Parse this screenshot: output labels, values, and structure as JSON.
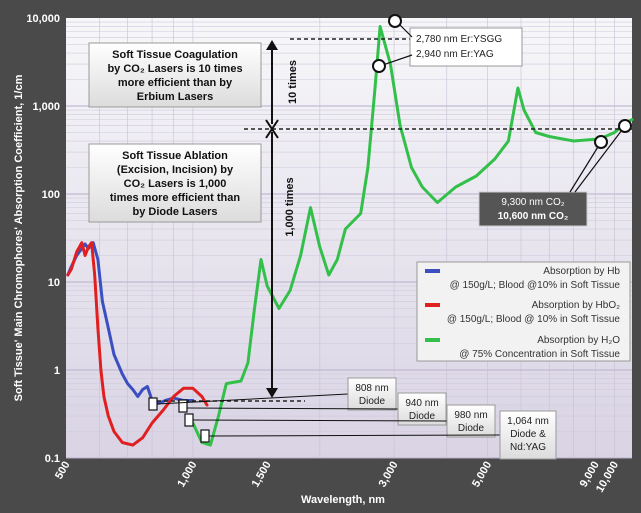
{
  "chart_data": {
    "type": "line",
    "xlabel": "Wavelength, nm",
    "ylabel": "Soft Tissue' Main Chromophores' Absorption Coefficient, 1/cm",
    "xscale": "log",
    "yscale": "log",
    "xlim": [
      500,
      11000
    ],
    "ylim": [
      0.1,
      10000
    ],
    "grid": true,
    "legend_position": "right",
    "x_ticks": [
      {
        "value": 500,
        "label": "500"
      },
      {
        "value": 1000,
        "label": "1,000"
      },
      {
        "value": 1500,
        "label": "1,500"
      },
      {
        "value": 3000,
        "label": "3,000"
      },
      {
        "value": 5000,
        "label": "5,000"
      },
      {
        "value": 9000,
        "label": "9,000"
      },
      {
        "value": 10000,
        "label": "10,000"
      }
    ],
    "y_ticks": [
      {
        "value": 0.1,
        "label": "0.1"
      },
      {
        "value": 1,
        "label": "1"
      },
      {
        "value": 10,
        "label": "10"
      },
      {
        "value": 100,
        "label": "100"
      },
      {
        "value": 1000,
        "label": "1,000"
      },
      {
        "value": 10000,
        "label": "10,000"
      }
    ],
    "series": [
      {
        "name": "Absorption by Hb @ 150g/L; Blood @10% in Soft Tissue",
        "legend_line1": "Absorption by Hb",
        "legend_line2": "@ 150g/L; Blood @10% in Soft Tissue",
        "color": "#3b4fc0",
        "x": [
          505,
          515,
          530,
          545,
          555,
          565,
          580,
          595,
          610,
          630,
          650,
          680,
          700,
          720,
          740,
          760,
          780,
          800,
          830,
          860,
          900,
          950,
          1000
        ],
        "y": [
          12,
          15,
          20,
          24,
          27,
          24,
          28,
          18,
          6,
          3,
          1.5,
          0.9,
          0.7,
          0.6,
          0.5,
          0.6,
          0.65,
          0.45,
          0.42,
          0.45,
          0.48,
          0.45,
          0.45
        ]
      },
      {
        "name": "Absorption by HbO2 @ 150g/L; Blood @ 10% in Soft Tissue",
        "legend_line1": "Absorption by HbO₂",
        "legend_line2": "@ 150g/L; Blood @ 10% in Soft Tissue",
        "color": "#e02020",
        "x": [
          505,
          515,
          530,
          545,
          555,
          565,
          575,
          585,
          595,
          605,
          615,
          630,
          650,
          680,
          720,
          760,
          800,
          850,
          900,
          950,
          1000,
          1050,
          1080
        ],
        "y": [
          12,
          14,
          22,
          28,
          20,
          25,
          28,
          12,
          3,
          1,
          0.5,
          0.3,
          0.2,
          0.15,
          0.14,
          0.17,
          0.25,
          0.35,
          0.5,
          0.62,
          0.62,
          0.5,
          0.4
        ]
      },
      {
        "name": "Absorption by H2O @ 75% Concentration in Soft Tissue",
        "legend_line1": "Absorption by H₂O",
        "legend_line2": "@ 75% Concentration in Soft Tissue",
        "color": "#33c04a",
        "x": [
          1000,
          1050,
          1100,
          1150,
          1200,
          1300,
          1350,
          1400,
          1450,
          1500,
          1600,
          1700,
          1800,
          1900,
          2000,
          2100,
          2200,
          2300,
          2500,
          2600,
          2700,
          2780,
          2940,
          3100,
          3300,
          3500,
          3800,
          4200,
          4700,
          5200,
          5600,
          5900,
          6100,
          6500,
          7000,
          8000,
          9000,
          9300,
          10000,
          10600,
          11000
        ],
        "y": [
          0.25,
          0.15,
          0.14,
          0.3,
          0.7,
          0.75,
          1.2,
          5,
          18,
          9,
          5,
          8,
          20,
          70,
          25,
          12,
          18,
          40,
          60,
          200,
          1500,
          8000,
          3000,
          600,
          200,
          120,
          80,
          120,
          160,
          250,
          400,
          1600,
          900,
          500,
          450,
          400,
          420,
          430,
          500,
          640,
          700
        ]
      }
    ],
    "annotations": {
      "coag_box": [
        "Soft Tissue Coagulation",
        "by CO₂ Lasers is 10 times",
        "more efficient than by",
        "Erbium Lasers"
      ],
      "ablation_box": [
        "Soft Tissue Ablation",
        "(Excision, Incision) by",
        "CO₂ Lasers is 1,000",
        "times more efficient than",
        "by Diode Lasers"
      ],
      "ten_times": "10 times",
      "thousand_times": "1,000 times",
      "er_labels": [
        "2,780 nm Er:YSGG",
        "2,940 nm Er:YAG"
      ],
      "co2_labels": [
        "9,300 nm CO₂",
        "10,600 nm CO₂"
      ],
      "diode_labels": [
        {
          "lines": [
            "808 nm",
            "Diode"
          ]
        },
        {
          "lines": [
            "940 nm",
            "Diode"
          ]
        },
        {
          "lines": [
            "980 nm",
            "Diode"
          ]
        },
        {
          "lines": [
            "1,064 nm",
            "Diode &",
            "Nd:YAG"
          ]
        }
      ]
    }
  }
}
